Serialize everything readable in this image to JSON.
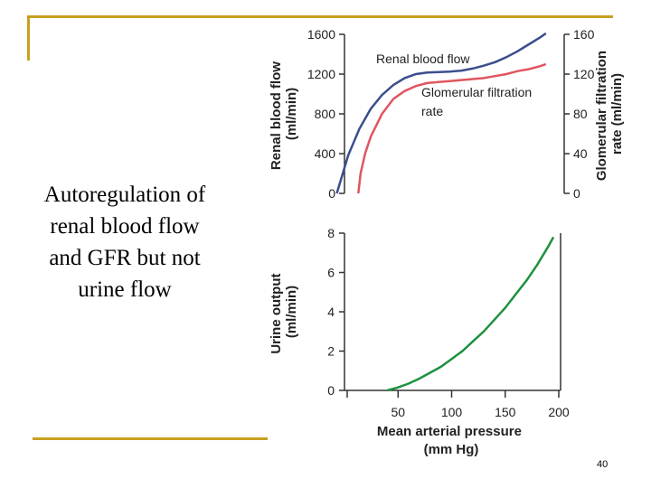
{
  "slide": {
    "caption_lines": [
      "Autoregulation of",
      "renal blood flow",
      "and GFR but not",
      "urine flow"
    ],
    "page_number": "40",
    "accent_color": "#c8a020"
  },
  "chart_data": [
    {
      "type": "line",
      "ylabel": "Renal blood flow (ml/min)",
      "ylabel_lines": [
        "Renal blood flow",
        "(ml/min)"
      ],
      "ylim": [
        0,
        1600
      ],
      "yticks": [
        0,
        400,
        800,
        1200,
        1600
      ],
      "y2label": "Glomerular filtration rate (ml/min)",
      "y2label_lines": [
        "Glomerular filtration",
        "rate (ml/min)"
      ],
      "y2lim": [
        0,
        160
      ],
      "y2ticks": [
        0,
        40,
        80,
        120,
        160
      ],
      "xlim": [
        0,
        200
      ],
      "series": [
        {
          "name": "Renal blood flow",
          "label_lines": [
            "Renal blood flow"
          ],
          "axis": "left",
          "color": "#3a4e8c",
          "x": [
            10,
            20,
            30,
            40,
            50,
            60,
            70,
            80,
            90,
            100,
            110,
            120,
            130,
            140,
            150,
            160,
            170,
            180,
            190,
            195
          ],
          "y": [
            0,
            380,
            650,
            850,
            990,
            1090,
            1160,
            1200,
            1215,
            1220,
            1225,
            1235,
            1255,
            1285,
            1320,
            1370,
            1430,
            1500,
            1570,
            1610
          ]
        },
        {
          "name": "Glomerular filtration rate",
          "label_lines": [
            "Glomerular filtration",
            "rate"
          ],
          "axis": "right",
          "color": "#e05560",
          "x": [
            29,
            31,
            35,
            40,
            50,
            60,
            70,
            80,
            90,
            100,
            110,
            120,
            130,
            140,
            150,
            160,
            170,
            180,
            190,
            195
          ],
          "y": [
            0,
            20,
            40,
            57,
            80,
            95,
            103,
            108,
            111,
            112,
            113,
            114,
            115,
            116,
            118,
            120,
            123,
            125,
            128,
            130
          ]
        }
      ]
    },
    {
      "type": "line",
      "ylabel": "Urine output (ml/min)",
      "ylabel_lines": [
        "Urine output",
        "(ml/min)"
      ],
      "ylim": [
        0,
        8
      ],
      "yticks": [
        0,
        2,
        4,
        6,
        8
      ],
      "xlabel": "Mean arterial pressure (mm Hg)",
      "xlabel_lines": [
        "Mean arterial pressure",
        "(mm Hg)"
      ],
      "xlim": [
        0,
        200
      ],
      "xticks": [
        50,
        100,
        150,
        200
      ],
      "series": [
        {
          "name": "",
          "color": "#1e9040",
          "x": [
            40,
            50,
            60,
            70,
            80,
            90,
            100,
            110,
            120,
            130,
            140,
            150,
            160,
            170,
            180,
            190,
            195
          ],
          "y": [
            0,
            0.15,
            0.35,
            0.6,
            0.9,
            1.2,
            1.6,
            2.0,
            2.5,
            3.0,
            3.6,
            4.2,
            4.9,
            5.6,
            6.4,
            7.3,
            7.8
          ]
        }
      ]
    }
  ]
}
